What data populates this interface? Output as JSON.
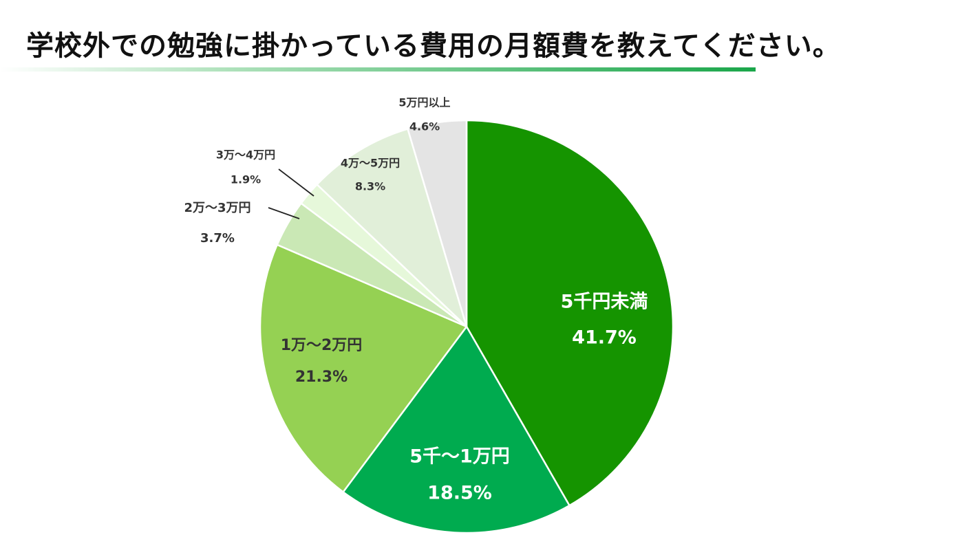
{
  "title": "学校外での勉強に掛かっている費用の月額費を教えてください。",
  "colors": {
    "underline": "#1aa64a",
    "slice_edge": "#ffffff",
    "leader": "#222222"
  },
  "chart_data": {
    "type": "pie",
    "title": "学校外での勉強に掛かっている費用の月額費を教えてください。",
    "start_angle_deg": 0,
    "direction": "clockwise",
    "slices": [
      {
        "label": "5千円未満",
        "value": 41.7,
        "value_label": "41.7%",
        "color": "#159400",
        "label_color": "#ffffff"
      },
      {
        "label": "5千〜1万円",
        "value": 18.5,
        "value_label": "18.5%",
        "color": "#00ab4f",
        "label_color": "#ffffff"
      },
      {
        "label": "1万〜2万円",
        "value": 21.3,
        "value_label": "21.3%",
        "color": "#95d153",
        "label_color": "#333333"
      },
      {
        "label": "2万〜3万円",
        "value": 3.7,
        "value_label": "3.7%",
        "color": "#cae8b5",
        "label_color": "#333333"
      },
      {
        "label": "3万〜4万円",
        "value": 1.9,
        "value_label": "1.9%",
        "color": "#e6f8da",
        "label_color": "#333333"
      },
      {
        "label": "4万〜5万円",
        "value": 8.3,
        "value_label": "8.3%",
        "color": "#e1efd9",
        "label_color": "#333333"
      },
      {
        "label": "5万円以上",
        "value": 4.6,
        "value_label": "4.6%",
        "color": "#e4e4e4",
        "label_color": "#333333"
      }
    ]
  }
}
